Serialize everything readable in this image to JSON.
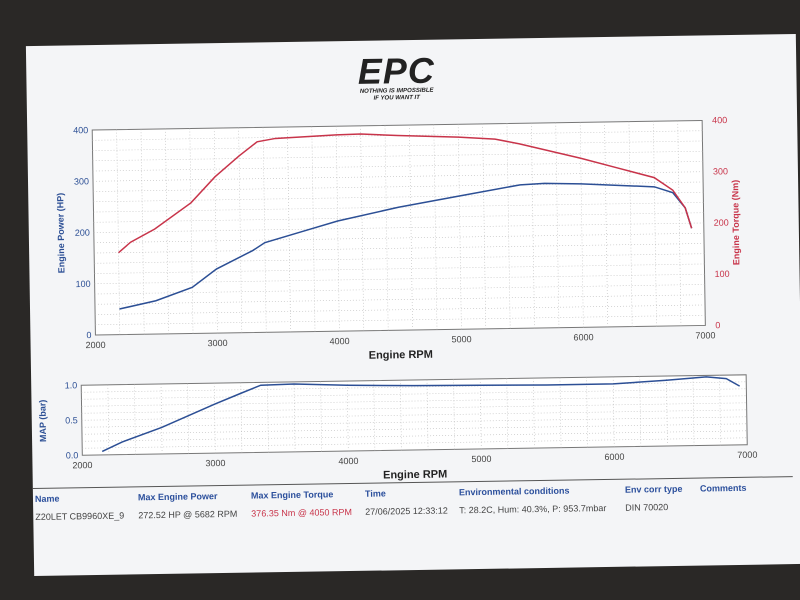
{
  "logo": {
    "main": "EPC",
    "line1": "NOTHING IS IMPOSSIBLE",
    "line2": "IF YOU WANT IT"
  },
  "colors": {
    "power": "#2c4f95",
    "torque": "#c8344a",
    "map": "#2c4f95",
    "header": "#2b4f9c"
  },
  "chart_data": [
    {
      "type": "line",
      "xlabel": "Engine RPM",
      "ylabel": "Engine Power (HP)",
      "y2label": "Engine Torque (Nm)",
      "xlim": [
        2000,
        7000
      ],
      "ylim": [
        0,
        400
      ],
      "y2lim": [
        0,
        400
      ],
      "grid": true,
      "xticks": [
        "2000",
        "3000",
        "4000",
        "5000",
        "6000",
        "7000"
      ],
      "yticks": [
        "0",
        "100",
        "200",
        "300",
        "400"
      ],
      "y2ticks": [
        "0",
        "100",
        "200",
        "300",
        "400"
      ],
      "series": [
        {
          "axis": "left",
          "color": "#2c4f95",
          "points": [
            [
              2200,
              50
            ],
            [
              2500,
              65
            ],
            [
              2800,
              90
            ],
            [
              3000,
              125
            ],
            [
              3300,
              160
            ],
            [
              3400,
              175
            ],
            [
              3700,
              195
            ],
            [
              4000,
              215
            ],
            [
              4500,
              240
            ],
            [
              5000,
              260
            ],
            [
              5500,
              280
            ],
            [
              5700,
              282
            ],
            [
              6000,
              280
            ],
            [
              6300,
              276
            ],
            [
              6600,
              272
            ],
            [
              6750,
              260
            ],
            [
              6850,
              230
            ],
            [
              6900,
              190
            ]
          ]
        },
        {
          "axis": "right",
          "color": "#c8344a",
          "points": [
            [
              2200,
              160
            ],
            [
              2300,
              180
            ],
            [
              2500,
              205
            ],
            [
              2800,
              255
            ],
            [
              3000,
              305
            ],
            [
              3200,
              345
            ],
            [
              3350,
              372
            ],
            [
              3500,
              378
            ],
            [
              4000,
              383
            ],
            [
              4200,
              384
            ],
            [
              4500,
              380
            ],
            [
              5000,
              375
            ],
            [
              5300,
              370
            ],
            [
              5500,
              360
            ],
            [
              6000,
              330
            ],
            [
              6300,
              310
            ],
            [
              6600,
              290
            ],
            [
              6750,
              265
            ],
            [
              6850,
              230
            ],
            [
              6900,
              190
            ]
          ]
        }
      ]
    },
    {
      "type": "line",
      "xlabel": "Engine RPM",
      "ylabel": "MAP (bar)",
      "xlim": [
        2000,
        7000
      ],
      "ylim": [
        0,
        1.0
      ],
      "grid": true,
      "xticks": [
        "2000",
        "3000",
        "4000",
        "5000",
        "6000",
        "7000"
      ],
      "yticks": [
        "0.0",
        "0.5",
        "1.0"
      ],
      "series": [
        {
          "color": "#2c4f95",
          "points": [
            [
              2150,
              0.05
            ],
            [
              2300,
              0.18
            ],
            [
              2600,
              0.38
            ],
            [
              3000,
              0.7
            ],
            [
              3200,
              0.85
            ],
            [
              3350,
              0.96
            ],
            [
              3600,
              0.97
            ],
            [
              4000,
              0.94
            ],
            [
              4500,
              0.92
            ],
            [
              5000,
              0.91
            ],
            [
              5500,
              0.9
            ],
            [
              6000,
              0.9
            ],
            [
              6400,
              0.94
            ],
            [
              6700,
              0.98
            ],
            [
              6850,
              0.95
            ],
            [
              6950,
              0.84
            ]
          ]
        }
      ]
    }
  ],
  "table": {
    "headers": [
      "Name",
      "Max Engine Power",
      "Max Engine Torque",
      "Time",
      "Environmental conditions",
      "Env corr type",
      "Comments"
    ],
    "row": [
      "Z20LET CB9960XE_9",
      "272.52 HP @ 5682 RPM",
      "376.35 Nm @ 4050 RPM",
      "27/06/2025 12:33:12",
      "T: 28.2C, Hum: 40.3%, P: 953.7mbar",
      "DIN 70020",
      ""
    ]
  }
}
